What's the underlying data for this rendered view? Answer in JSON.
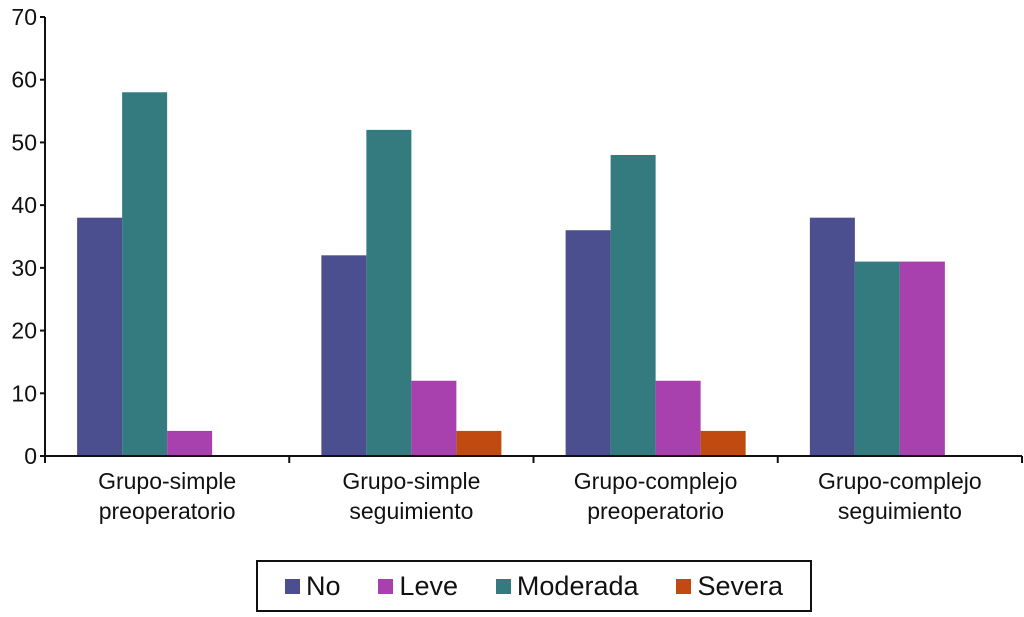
{
  "chart_data": {
    "type": "bar",
    "title": "",
    "xlabel": "",
    "ylabel": "",
    "ylim": [
      0,
      70
    ],
    "yticks": [
      0,
      10,
      20,
      30,
      40,
      50,
      60,
      70
    ],
    "grid": false,
    "legend_position": "bottom",
    "categories": [
      [
        "Grupo-simple",
        "preoperatorio"
      ],
      [
        "Grupo-simple",
        "seguimiento"
      ],
      [
        "Grupo-complejo",
        "preoperatorio"
      ],
      [
        "Grupo-complejo",
        "seguimiento"
      ]
    ],
    "series": [
      {
        "name": "No",
        "color": "#4b4e8f",
        "values": [
          38,
          32,
          36,
          38
        ]
      },
      {
        "name": "Moderada",
        "color": "#337b7f",
        "values": [
          58,
          52,
          48,
          31
        ]
      },
      {
        "name": "Leve",
        "color": "#a840ad",
        "values": [
          4,
          12,
          12,
          31
        ]
      },
      {
        "name": "Severa",
        "color": "#c04a10",
        "values": [
          0,
          4,
          4,
          0
        ]
      }
    ],
    "legend": [
      {
        "name": "No",
        "color": "#4b4e8f"
      },
      {
        "name": "Leve",
        "color": "#a840ad"
      },
      {
        "name": "Moderada",
        "color": "#337b7f"
      },
      {
        "name": "Severa",
        "color": "#c04a10"
      }
    ]
  }
}
